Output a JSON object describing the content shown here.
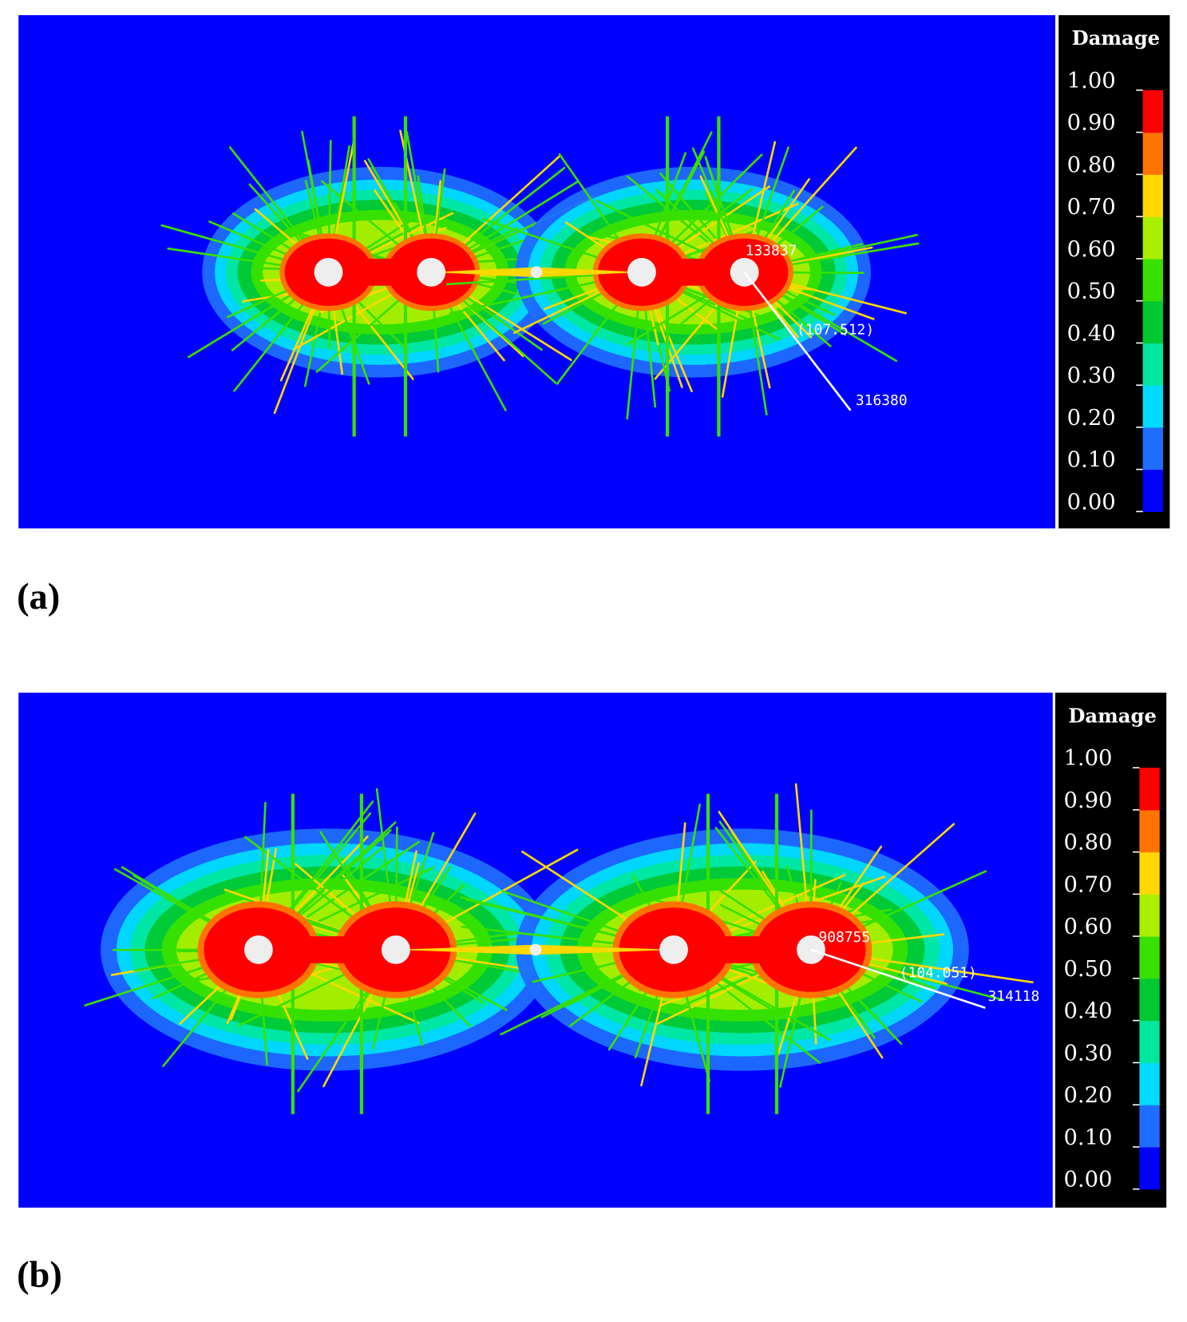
{
  "panels": [
    {
      "label": "(a)",
      "legend": {
        "title": "Damage",
        "ticks": [
          {
            "value": 1,
            "label": "1.00"
          },
          {
            "value": 0.9,
            "label": "0.90"
          },
          {
            "value": 0.8,
            "label": "0.80"
          },
          {
            "value": 0.7,
            "label": "0.70"
          },
          {
            "value": 0.6,
            "label": "0.60"
          },
          {
            "value": 0.5,
            "label": "0.50"
          },
          {
            "value": 0.4,
            "label": "0.40"
          },
          {
            "value": 0.3,
            "label": "0.30"
          },
          {
            "value": 0.2,
            "label": "0.20"
          },
          {
            "value": 0.1,
            "label": "0.10"
          },
          {
            "value": 0,
            "label": "0.00"
          }
        ],
        "colors": [
          "#0000ff",
          "#1f6dff",
          "#00dcff",
          "#00e8a0",
          "#00c832",
          "#38e000",
          "#aaee00",
          "#ffd800",
          "#ff7400",
          "#ff0000"
        ]
      },
      "annotations": [
        "133837",
        "(107.512)",
        "316380"
      ]
    },
    {
      "label": "(b)",
      "legend": {
        "title": "Damage",
        "ticks": [
          {
            "value": 1,
            "label": "1.00"
          },
          {
            "value": 0.9,
            "label": "0.90"
          },
          {
            "value": 0.8,
            "label": "0.80"
          },
          {
            "value": 0.7,
            "label": "0.70"
          },
          {
            "value": 0.6,
            "label": "0.60"
          },
          {
            "value": 0.5,
            "label": "0.50"
          },
          {
            "value": 0.4,
            "label": "0.40"
          },
          {
            "value": 0.3,
            "label": "0.30"
          },
          {
            "value": 0.2,
            "label": "0.20"
          },
          {
            "value": 0.1,
            "label": "0.10"
          },
          {
            "value": 0,
            "label": "0.00"
          }
        ],
        "colors": [
          "#0000ff",
          "#1f6dff",
          "#00dcff",
          "#00e8a0",
          "#00c832",
          "#38e000",
          "#aaee00",
          "#ffd800",
          "#ff7400",
          "#ff0000"
        ]
      },
      "annotations": [
        "908755",
        "(104.051)",
        "314118"
      ]
    }
  ]
}
